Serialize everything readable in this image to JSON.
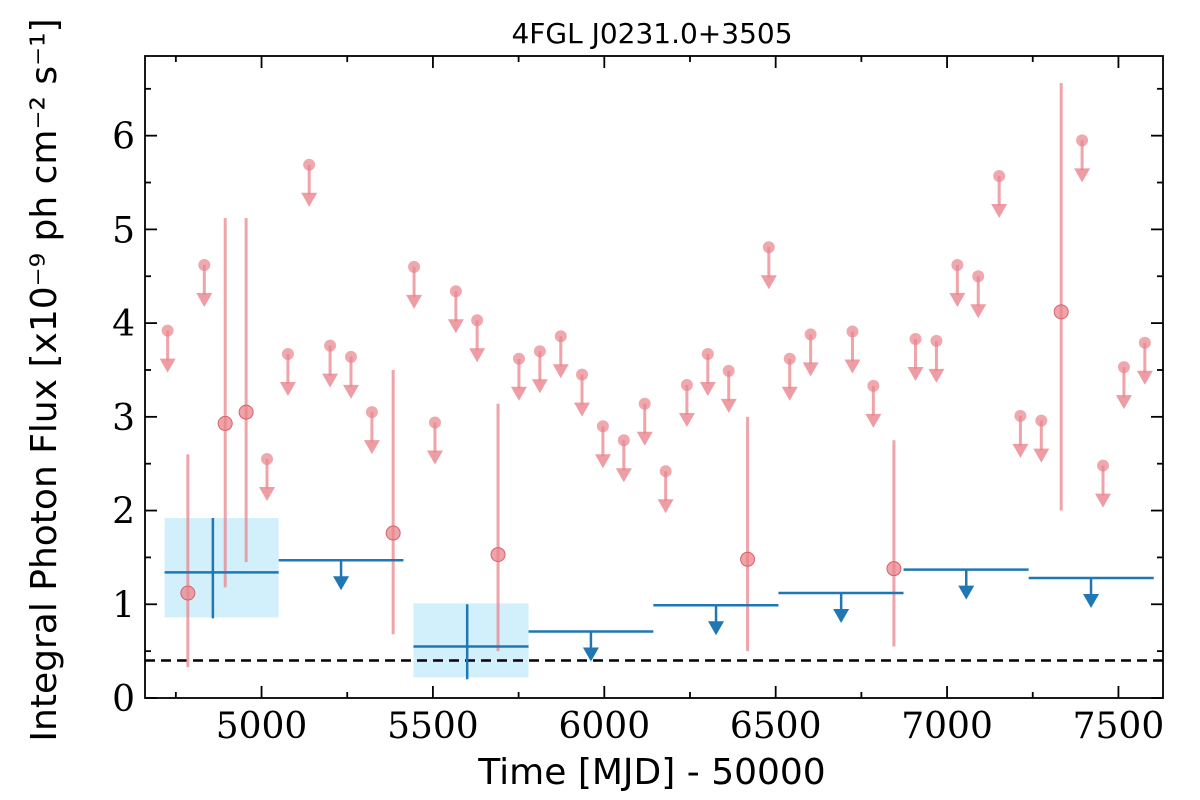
{
  "chart_data": {
    "type": "scatter",
    "title": "4FGL J0231.0+3505",
    "xlabel": "Time [MJD] - 50000",
    "ylabel": "Integral Photon Flux [x10⁻⁹ ph cm⁻² s⁻¹]",
    "xlim": [
      4660,
      7630
    ],
    "ylim": [
      0,
      6.85
    ],
    "xticks": [
      5000,
      5500,
      6000,
      6500,
      7000,
      7500
    ],
    "yticks": [
      0,
      1,
      2,
      3,
      4,
      5,
      6
    ],
    "xtick_labels": [
      "5000",
      "5500",
      "6000",
      "6500",
      "7000",
      "7500"
    ],
    "ytick_labels": [
      "0",
      "1",
      "2",
      "3",
      "4",
      "5",
      "6"
    ],
    "threshold_line": 0.4,
    "colors": {
      "short_bins": "#e8858c",
      "long_bins": "#1f77b4",
      "long_bin_box": "#cdeefc",
      "threshold": "#000000"
    },
    "series": [
      {
        "marker": "circle_with_errorbar",
        "points": [
          {
            "x": 4785,
            "y": 1.12,
            "ylo": 0.33,
            "yhi": 2.6
          },
          {
            "x": 4894,
            "y": 2.93,
            "ylo": 1.18,
            "yhi": 5.12
          },
          {
            "x": 4955,
            "y": 3.05,
            "ylo": 1.45,
            "yhi": 5.12
          },
          {
            "x": 5384,
            "y": 1.76,
            "ylo": 0.68,
            "yhi": 3.5
          },
          {
            "x": 5690,
            "y": 1.53,
            "ylo": 0.5,
            "yhi": 3.14
          },
          {
            "x": 6418,
            "y": 1.48,
            "ylo": 0.5,
            "yhi": 3.0
          },
          {
            "x": 6845,
            "y": 1.38,
            "ylo": 0.55,
            "yhi": 2.75
          },
          {
            "x": 7333,
            "y": 4.12,
            "ylo": 2.0,
            "yhi": 6.56
          }
        ]
      },
      {
        "marker": "upper_limit",
        "points": [
          {
            "x": 4726,
            "y": 3.92
          },
          {
            "x": 4833,
            "y": 4.62
          },
          {
            "x": 5016,
            "y": 2.55
          },
          {
            "x": 5077,
            "y": 3.67
          },
          {
            "x": 5139,
            "y": 5.69
          },
          {
            "x": 5200,
            "y": 3.76
          },
          {
            "x": 5261,
            "y": 3.64
          },
          {
            "x": 5322,
            "y": 3.05
          },
          {
            "x": 5445,
            "y": 4.6
          },
          {
            "x": 5506,
            "y": 2.94
          },
          {
            "x": 5567,
            "y": 4.34
          },
          {
            "x": 5629,
            "y": 4.03
          },
          {
            "x": 5751,
            "y": 3.62
          },
          {
            "x": 5812,
            "y": 3.7
          },
          {
            "x": 5873,
            "y": 3.86
          },
          {
            "x": 5935,
            "y": 3.45
          },
          {
            "x": 5996,
            "y": 2.9
          },
          {
            "x": 6057,
            "y": 2.75
          },
          {
            "x": 6118,
            "y": 3.14
          },
          {
            "x": 6179,
            "y": 2.42
          },
          {
            "x": 6241,
            "y": 3.34
          },
          {
            "x": 6302,
            "y": 3.67
          },
          {
            "x": 6363,
            "y": 3.49
          },
          {
            "x": 6480,
            "y": 4.81
          },
          {
            "x": 6541,
            "y": 3.62
          },
          {
            "x": 6602,
            "y": 3.88
          },
          {
            "x": 6724,
            "y": 3.91
          },
          {
            "x": 6785,
            "y": 3.33
          },
          {
            "x": 6908,
            "y": 3.83
          },
          {
            "x": 6969,
            "y": 3.81
          },
          {
            "x": 7030,
            "y": 4.62
          },
          {
            "x": 7091,
            "y": 4.5
          },
          {
            "x": 7152,
            "y": 5.57
          },
          {
            "x": 7214,
            "y": 3.01
          },
          {
            "x": 7275,
            "y": 2.96
          },
          {
            "x": 7394,
            "y": 5.95
          },
          {
            "x": 7455,
            "y": 2.48
          },
          {
            "x": 7516,
            "y": 3.53
          },
          {
            "x": 7577,
            "y": 3.79
          }
        ]
      },
      {
        "marker": "detection_bin",
        "points": [
          {
            "x": 4858,
            "x0": 4688,
            "x1": 5050,
            "y": 1.34,
            "ylo": 0.85,
            "yhi": 1.92,
            "box_lo": 0.86,
            "box_hi": 1.92
          },
          {
            "x": 5600,
            "x0": 5414,
            "x1": 5779,
            "y": 0.55,
            "ylo": 0.2,
            "yhi": 1.0,
            "box_lo": 0.22,
            "box_hi": 1.01
          }
        ]
      },
      {
        "marker": "upper_limit_bin",
        "points": [
          {
            "x": 5232,
            "x0": 5050,
            "x1": 5414,
            "y": 1.47
          },
          {
            "x": 5961,
            "x0": 5779,
            "x1": 6143,
            "y": 0.71
          },
          {
            "x": 6326,
            "x0": 6143,
            "x1": 6508,
            "y": 0.99
          },
          {
            "x": 6691,
            "x0": 6508,
            "x1": 6873,
            "y": 1.12
          },
          {
            "x": 7056,
            "x0": 6873,
            "x1": 7238,
            "y": 1.37
          },
          {
            "x": 7420,
            "x0": 7238,
            "x1": 7603,
            "y": 1.28
          }
        ]
      }
    ]
  }
}
